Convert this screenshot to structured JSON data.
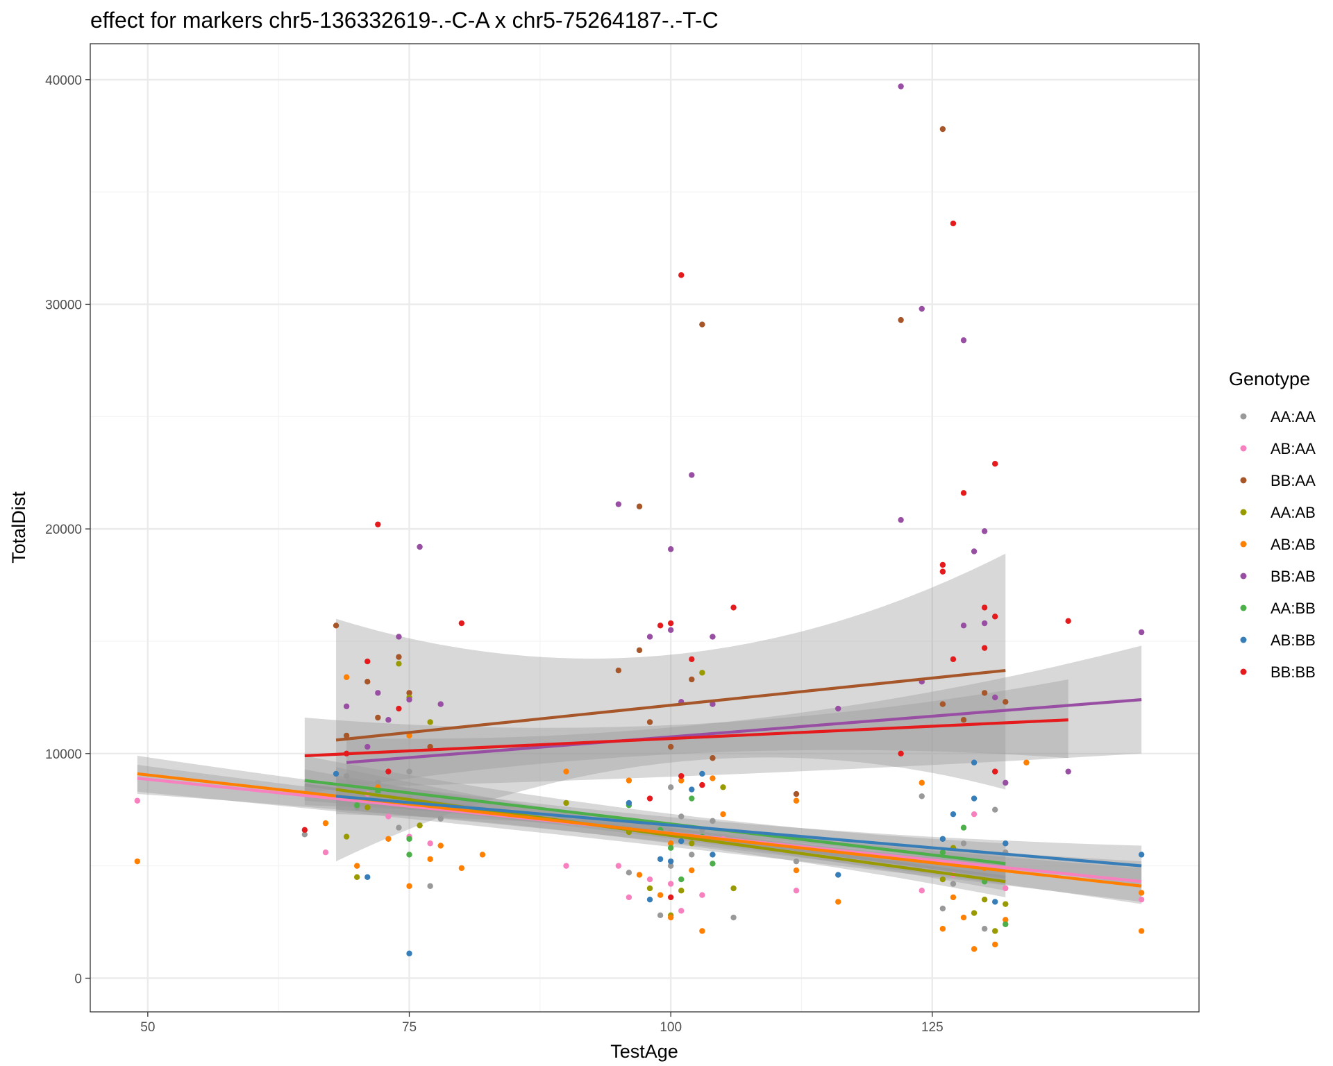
{
  "chart_data": {
    "type": "scatter",
    "title": "effect for markers chr5-136332619-.-C-A x chr5-75264187-.-T-C",
    "xlabel": "TestAge",
    "ylabel": "TotalDist",
    "xlim": [
      44.5,
      150.5
    ],
    "ylim": [
      -1500,
      41600
    ],
    "x_ticks": [
      50,
      75,
      100,
      125
    ],
    "y_ticks": [
      0,
      10000,
      20000,
      30000,
      40000
    ],
    "x_tick_labels": [
      "50",
      "75",
      "100",
      "125"
    ],
    "y_tick_labels": [
      "0",
      "10000",
      "20000",
      "30000",
      "40000"
    ],
    "grid": true,
    "legend": {
      "title": "Genotype",
      "position": "right"
    },
    "series": [
      {
        "name": "AA:AA",
        "color": "#999999",
        "points": [
          [
            65,
            6400
          ],
          [
            69,
            9000
          ],
          [
            70,
            7600
          ],
          [
            72,
            8700
          ],
          [
            74,
            6700
          ],
          [
            75,
            9200
          ],
          [
            75,
            8000
          ],
          [
            77,
            4100
          ],
          [
            78,
            7100
          ],
          [
            96,
            4700
          ],
          [
            99,
            2800
          ],
          [
            100,
            5000
          ],
          [
            100,
            6500
          ],
          [
            100,
            8500
          ],
          [
            101,
            7200
          ],
          [
            102,
            5500
          ],
          [
            103,
            6600
          ],
          [
            104,
            7000
          ],
          [
            106,
            2700
          ],
          [
            112,
            5200
          ],
          [
            124,
            8100
          ],
          [
            126,
            3100
          ],
          [
            127,
            4200
          ],
          [
            128,
            6000
          ],
          [
            130,
            2200
          ],
          [
            131,
            7500
          ],
          [
            132,
            5600
          ]
        ],
        "fit": {
          "x": [
            65,
            132
          ],
          "y": [
            8600,
            4500
          ]
        }
      },
      {
        "name": "AB:AA",
        "color": "#F781BF",
        "points": [
          [
            49,
            7900
          ],
          [
            67,
            5600
          ],
          [
            71,
            8200
          ],
          [
            73,
            7200
          ],
          [
            75,
            6300
          ],
          [
            77,
            6000
          ],
          [
            90,
            5000
          ],
          [
            95,
            5000
          ],
          [
            96,
            3600
          ],
          [
            98,
            4400
          ],
          [
            100,
            4200
          ],
          [
            101,
            3000
          ],
          [
            103,
            3700
          ],
          [
            105,
            6200
          ],
          [
            112,
            3900
          ],
          [
            124,
            3900
          ],
          [
            127,
            4600
          ],
          [
            129,
            7300
          ],
          [
            132,
            4000
          ],
          [
            145,
            3500
          ]
        ],
        "fit": {
          "x": [
            49,
            145
          ],
          "y": [
            8900,
            4300
          ]
        }
      },
      {
        "name": "BB:AA",
        "color": "#A65628",
        "points": [
          [
            68,
            15700
          ],
          [
            69,
            10800
          ],
          [
            71,
            13200
          ],
          [
            72,
            11600
          ],
          [
            74,
            14300
          ],
          [
            75,
            12700
          ],
          [
            77,
            10300
          ],
          [
            95,
            13700
          ],
          [
            97,
            21000
          ],
          [
            97,
            14600
          ],
          [
            98,
            11400
          ],
          [
            100,
            10300
          ],
          [
            102,
            13300
          ],
          [
            103,
            29100
          ],
          [
            104,
            9800
          ],
          [
            112,
            8200
          ],
          [
            122,
            29300
          ],
          [
            126,
            37800
          ],
          [
            126,
            12200
          ],
          [
            128,
            11500
          ],
          [
            130,
            12700
          ],
          [
            131,
            9200
          ],
          [
            132,
            12300
          ]
        ],
        "fit": {
          "x": [
            68,
            132
          ],
          "y": [
            10600,
            13700
          ]
        }
      },
      {
        "name": "AA:AB",
        "color": "#999900",
        "points": [
          [
            69,
            6300
          ],
          [
            70,
            4500
          ],
          [
            71,
            7600
          ],
          [
            74,
            14000
          ],
          [
            75,
            12500
          ],
          [
            76,
            6800
          ],
          [
            77,
            11400
          ],
          [
            90,
            7800
          ],
          [
            96,
            6500
          ],
          [
            98,
            4000
          ],
          [
            100,
            2800
          ],
          [
            101,
            3900
          ],
          [
            102,
            6000
          ],
          [
            103,
            13600
          ],
          [
            105,
            8500
          ],
          [
            106,
            4000
          ],
          [
            126,
            4400
          ],
          [
            127,
            5800
          ],
          [
            129,
            2900
          ],
          [
            130,
            3500
          ],
          [
            131,
            2100
          ],
          [
            132,
            3300
          ]
        ],
        "fit": {
          "x": [
            68,
            132
          ],
          "y": [
            8400,
            4300
          ]
        }
      },
      {
        "name": "AB:AB",
        "color": "#FF7F00",
        "points": [
          [
            49,
            5200
          ],
          [
            67,
            6900
          ],
          [
            69,
            13400
          ],
          [
            70,
            5000
          ],
          [
            72,
            8500
          ],
          [
            73,
            6200
          ],
          [
            75,
            4100
          ],
          [
            75,
            10800
          ],
          [
            77,
            5300
          ],
          [
            78,
            5900
          ],
          [
            80,
            4900
          ],
          [
            82,
            5500
          ],
          [
            90,
            9200
          ],
          [
            96,
            8800
          ],
          [
            97,
            4600
          ],
          [
            99,
            3700
          ],
          [
            100,
            2700
          ],
          [
            100,
            6000
          ],
          [
            101,
            8800
          ],
          [
            102,
            4800
          ],
          [
            103,
            2100
          ],
          [
            104,
            8900
          ],
          [
            105,
            7300
          ],
          [
            112,
            4800
          ],
          [
            112,
            7900
          ],
          [
            116,
            3400
          ],
          [
            124,
            8700
          ],
          [
            126,
            2200
          ],
          [
            127,
            3600
          ],
          [
            128,
            2700
          ],
          [
            129,
            1300
          ],
          [
            130,
            4900
          ],
          [
            131,
            1500
          ],
          [
            132,
            2600
          ],
          [
            134,
            9600
          ],
          [
            145,
            2100
          ],
          [
            145,
            3800
          ]
        ],
        "fit": {
          "x": [
            49,
            145
          ],
          "y": [
            9100,
            4100
          ]
        }
      },
      {
        "name": "BB:AB",
        "color": "#984EA3",
        "points": [
          [
            69,
            12100
          ],
          [
            71,
            10300
          ],
          [
            72,
            12700
          ],
          [
            73,
            11500
          ],
          [
            74,
            15200
          ],
          [
            75,
            12400
          ],
          [
            76,
            19200
          ],
          [
            78,
            12200
          ],
          [
            95,
            21100
          ],
          [
            98,
            15200
          ],
          [
            100,
            19100
          ],
          [
            100,
            15500
          ],
          [
            101,
            12300
          ],
          [
            102,
            22400
          ],
          [
            104,
            15200
          ],
          [
            104,
            12200
          ],
          [
            116,
            12000
          ],
          [
            122,
            39700
          ],
          [
            122,
            20400
          ],
          [
            124,
            29800
          ],
          [
            124,
            13200
          ],
          [
            128,
            28400
          ],
          [
            128,
            15700
          ],
          [
            129,
            19000
          ],
          [
            130,
            19900
          ],
          [
            130,
            15800
          ],
          [
            131,
            12500
          ],
          [
            132,
            8700
          ],
          [
            138,
            9200
          ],
          [
            145,
            15400
          ]
        ],
        "fit": {
          "x": [
            69,
            145
          ],
          "y": [
            9600,
            12400
          ]
        }
      },
      {
        "name": "AA:BB",
        "color": "#4DAF4A",
        "points": [
          [
            70,
            7700
          ],
          [
            72,
            8300
          ],
          [
            75,
            5500
          ],
          [
            75,
            6200
          ],
          [
            96,
            7700
          ],
          [
            99,
            6600
          ],
          [
            100,
            5800
          ],
          [
            101,
            4400
          ],
          [
            102,
            8000
          ],
          [
            103,
            6300
          ],
          [
            104,
            5100
          ],
          [
            126,
            5600
          ],
          [
            128,
            6700
          ],
          [
            130,
            4300
          ],
          [
            132,
            2400
          ]
        ],
        "fit": {
          "x": [
            65,
            132
          ],
          "y": [
            8800,
            5100
          ]
        }
      },
      {
        "name": "AB:BB",
        "color": "#377EB8",
        "points": [
          [
            68,
            9100
          ],
          [
            71,
            4500
          ],
          [
            75,
            1100
          ],
          [
            96,
            7800
          ],
          [
            98,
            3500
          ],
          [
            99,
            5300
          ],
          [
            100,
            5200
          ],
          [
            101,
            6100
          ],
          [
            102,
            8400
          ],
          [
            103,
            9100
          ],
          [
            104,
            5500
          ],
          [
            116,
            4600
          ],
          [
            126,
            6200
          ],
          [
            127,
            7300
          ],
          [
            129,
            8000
          ],
          [
            129,
            9600
          ],
          [
            131,
            3400
          ],
          [
            132,
            6000
          ],
          [
            145,
            5500
          ]
        ],
        "fit": {
          "x": [
            68,
            145
          ],
          "y": [
            8100,
            5000
          ]
        }
      },
      {
        "name": "BB:BB",
        "color": "#E41A1C",
        "points": [
          [
            65,
            6600
          ],
          [
            69,
            10000
          ],
          [
            71,
            14100
          ],
          [
            72,
            20200
          ],
          [
            73,
            9200
          ],
          [
            74,
            12000
          ],
          [
            80,
            15800
          ],
          [
            98,
            8000
          ],
          [
            99,
            15700
          ],
          [
            100,
            15800
          ],
          [
            100,
            3600
          ],
          [
            101,
            31300
          ],
          [
            101,
            9000
          ],
          [
            102,
            14200
          ],
          [
            103,
            8600
          ],
          [
            106,
            16500
          ],
          [
            122,
            10000
          ],
          [
            126,
            18400
          ],
          [
            126,
            18100
          ],
          [
            127,
            33600
          ],
          [
            127,
            14200
          ],
          [
            128,
            21600
          ],
          [
            130,
            14700
          ],
          [
            130,
            16500
          ],
          [
            131,
            22900
          ],
          [
            131,
            16100
          ],
          [
            131,
            9200
          ],
          [
            138,
            15900
          ]
        ],
        "fit": {
          "x": [
            65,
            138
          ],
          "y": [
            9900,
            11500
          ]
        }
      }
    ],
    "bands": [
      {
        "series": "BB:AA",
        "x": [
          68,
          100,
          132
        ],
        "upper": [
          16000,
          14400,
          18900
        ],
        "lower": [
          5200,
          9600,
          8400
        ]
      },
      {
        "series": "BB:AB",
        "x": [
          69,
          107,
          145
        ],
        "upper": [
          10700,
          11500,
          14800
        ],
        "lower": [
          8500,
          9100,
          10000
        ]
      },
      {
        "series": "BB:BB",
        "x": [
          65,
          101.5,
          138
        ],
        "upper": [
          11600,
          11300,
          13300
        ],
        "lower": [
          8200,
          10000,
          9800
        ]
      },
      {
        "series": "AB:AA",
        "x": [
          49,
          97,
          145
        ],
        "upper": [
          9500,
          6900,
          5200
        ],
        "lower": [
          8300,
          6000,
          3400
        ]
      },
      {
        "series": "AB:AB",
        "x": [
          49,
          97,
          145
        ],
        "upper": [
          9900,
          7000,
          4900
        ],
        "lower": [
          8200,
          6200,
          3300
        ]
      },
      {
        "series": "AA:AA",
        "x": [
          65,
          98.5,
          132
        ],
        "upper": [
          9300,
          6800,
          5100
        ],
        "lower": [
          7900,
          6300,
          3900
        ]
      },
      {
        "series": "AA:AB",
        "x": [
          68,
          100,
          132
        ],
        "upper": [
          9400,
          6700,
          5000
        ],
        "lower": [
          7500,
          6000,
          3600
        ]
      },
      {
        "series": "AA:BB",
        "x": [
          65,
          98.5,
          132
        ],
        "upper": [
          9900,
          7400,
          6000
        ],
        "lower": [
          7700,
          6600,
          4300
        ]
      },
      {
        "series": "AB:BB",
        "x": [
          68,
          106.5,
          145
        ],
        "upper": [
          8900,
          6900,
          5900
        ],
        "lower": [
          7300,
          6300,
          4100
        ]
      }
    ]
  }
}
